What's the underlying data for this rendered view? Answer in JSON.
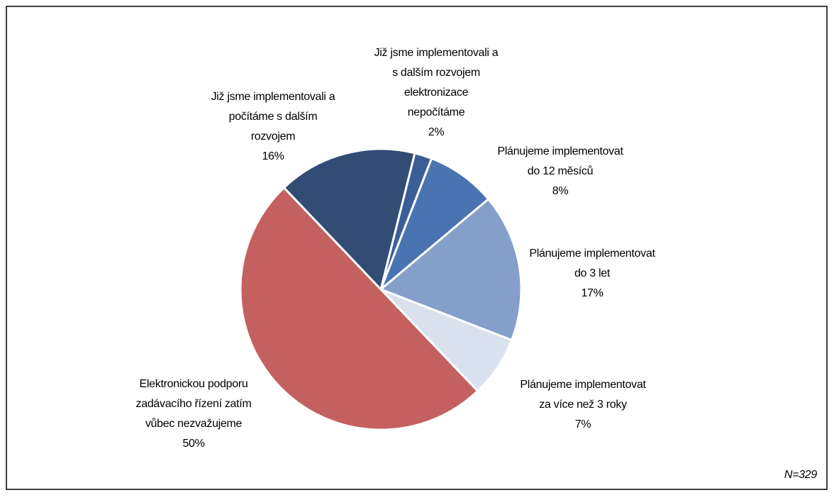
{
  "chart_data": {
    "type": "pie",
    "categories": [
      [
        "Již jsme implementovali a",
        "s dalším rozvojem",
        "elektronizace",
        "nepočítáme"
      ],
      [
        "Plánujeme implementovat",
        "do 12 měsíců"
      ],
      [
        "Plánujeme implementovat",
        "do 3 let"
      ],
      [
        "Plánujeme implementovat",
        "za více než 3 roky"
      ],
      [
        "Elektronickou podporu",
        "zadávacího řízení zatím",
        "vůbec nezvažujeme"
      ],
      [
        "Již jsme implementovali a",
        "počítáme s dalším",
        "rozvojem"
      ]
    ],
    "values": [
      2,
      8,
      17,
      7,
      50,
      16
    ],
    "value_labels": [
      "2%",
      "8%",
      "17%",
      "7%",
      "50%",
      "16%"
    ],
    "colors": [
      "#3b5e98",
      "#4a74b1",
      "#849fca",
      "#dae1ee",
      "#c46060",
      "#324c73"
    ],
    "note": "N=329"
  }
}
